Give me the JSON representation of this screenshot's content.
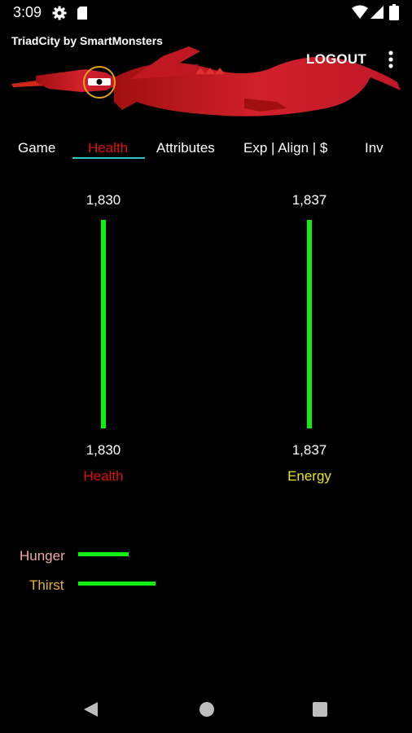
{
  "status_bar": {
    "time": "3:09",
    "icons": [
      "gear-icon",
      "sd-card-icon",
      "wifi-icon",
      "signal-icon",
      "battery-icon"
    ]
  },
  "app": {
    "title": "TriadCity by SmartMonsters",
    "logout_label": "LOGOUT",
    "accent_color": "#e01010"
  },
  "tabs": [
    {
      "label": "Game",
      "active": false
    },
    {
      "label": "Health",
      "active": true
    },
    {
      "label": "Attributes",
      "active": false
    },
    {
      "label": "Exp | Align | $",
      "active": false
    },
    {
      "label": "Inv",
      "active": false
    }
  ],
  "gauges": {
    "health": {
      "max": "1,830",
      "current": "1,830",
      "label": "Health",
      "level": 1.0,
      "color": "#e01010"
    },
    "energy": {
      "max": "1,837",
      "current": "1,837",
      "label": "Energy",
      "level": 1.0,
      "color": "#e6e61a"
    }
  },
  "meters": {
    "hunger": {
      "label": "Hunger",
      "level": 0.44,
      "color": "#f0a8a8"
    },
    "thirst": {
      "label": "Thirst",
      "level": 0.68,
      "color": "#e6b422"
    }
  },
  "nav": {
    "icons": [
      "back-icon",
      "home-icon",
      "recents-icon"
    ]
  }
}
